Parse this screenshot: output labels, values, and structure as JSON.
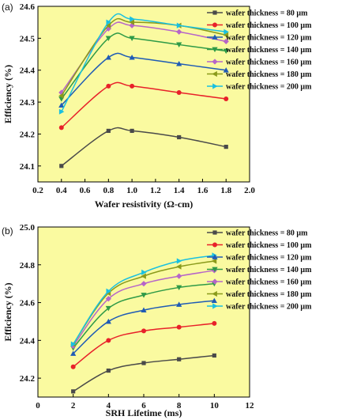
{
  "chart_data": [
    {
      "panel": "(a)",
      "type": "line",
      "xlabel": "Wafer resistivity (Ω-cm)",
      "ylabel": "Efficiency (%)",
      "xlim": [
        0.2,
        2.0
      ],
      "ylim": [
        24.05,
        24.6
      ],
      "xticks": [
        "0.2",
        "0.4",
        "0.6",
        "0.8",
        "1.0",
        "1.2",
        "1.4",
        "1.6",
        "1.8",
        "2.0"
      ],
      "yticks": [
        "24.1",
        "24.2",
        "24.3",
        "24.4",
        "24.5",
        "24.6"
      ],
      "x": [
        0.4,
        0.8,
        1.0,
        1.4,
        1.8
      ],
      "legend_position": "right",
      "grid": false,
      "background": "#fafaa0",
      "series": [
        {
          "name": "wafer thickness = 80 μm",
          "color": "#4a4a4a",
          "marker": "square",
          "values": [
            24.1,
            24.21,
            24.21,
            24.19,
            24.16
          ]
        },
        {
          "name": "wafer thickness = 100 μm",
          "color": "#e8212a",
          "marker": "circle",
          "values": [
            24.22,
            24.35,
            24.35,
            24.33,
            24.31
          ]
        },
        {
          "name": "wafer thickness = 120 μm",
          "color": "#1f5bb5",
          "marker": "triangle-up",
          "values": [
            24.29,
            24.44,
            24.44,
            24.42,
            24.4
          ]
        },
        {
          "name": "wafer thickness = 140 μm",
          "color": "#2e9a47",
          "marker": "triangle-down",
          "values": [
            24.31,
            24.5,
            24.5,
            24.48,
            24.46
          ]
        },
        {
          "name": "wafer thickness = 160 μm",
          "color": "#b665c8",
          "marker": "diamond",
          "values": [
            24.33,
            24.53,
            24.54,
            24.52,
            24.49
          ]
        },
        {
          "name": "wafer thickness = 180 μm",
          "color": "#8a9a1b",
          "marker": "triangle-left",
          "values": [
            24.32,
            24.54,
            24.55,
            24.54,
            24.51
          ]
        },
        {
          "name": "wafer thickness = 200 μm",
          "color": "#19c0e0",
          "marker": "triangle-right",
          "values": [
            24.27,
            24.55,
            24.56,
            24.54,
            24.52
          ]
        }
      ]
    },
    {
      "panel": "(b)",
      "type": "line",
      "xlabel": "SRH Lifetime (ms)",
      "ylabel": "Efficiency (%)",
      "xlim": [
        0,
        12
      ],
      "ylim": [
        24.1,
        25.0
      ],
      "xticks": [
        "0",
        "2",
        "4",
        "6",
        "8",
        "10",
        "12"
      ],
      "yticks": [
        "24.2",
        "24.4",
        "24.6",
        "24.8",
        "25.0"
      ],
      "x": [
        2,
        4,
        6,
        8,
        10
      ],
      "legend_position": "right",
      "grid": false,
      "background": "#fafaa0",
      "series": [
        {
          "name": "wafer thickness = 80 μm",
          "color": "#4a4a4a",
          "marker": "square",
          "values": [
            24.13,
            24.24,
            24.28,
            24.3,
            24.32
          ]
        },
        {
          "name": "wafer thickness = 100 μm",
          "color": "#e8212a",
          "marker": "circle",
          "values": [
            24.26,
            24.4,
            24.45,
            24.47,
            24.49
          ]
        },
        {
          "name": "wafer thickness = 120 μm",
          "color": "#1f5bb5",
          "marker": "triangle-up",
          "values": [
            24.33,
            24.5,
            24.56,
            24.59,
            24.61
          ]
        },
        {
          "name": "wafer thickness = 140 μm",
          "color": "#2e9a47",
          "marker": "triangle-down",
          "values": [
            24.36,
            24.57,
            24.64,
            24.68,
            24.7
          ]
        },
        {
          "name": "wafer thickness = 160 μm",
          "color": "#b665c8",
          "marker": "diamond",
          "values": [
            24.37,
            24.62,
            24.7,
            24.74,
            24.77
          ]
        },
        {
          "name": "wafer thickness = 180 μm",
          "color": "#8a9a1b",
          "marker": "triangle-left",
          "values": [
            24.38,
            24.65,
            24.74,
            24.79,
            24.82
          ]
        },
        {
          "name": "wafer thickness = 200 μm",
          "color": "#19c0e0",
          "marker": "triangle-right",
          "values": [
            24.38,
            24.66,
            24.76,
            24.82,
            24.85
          ]
        }
      ]
    }
  ]
}
